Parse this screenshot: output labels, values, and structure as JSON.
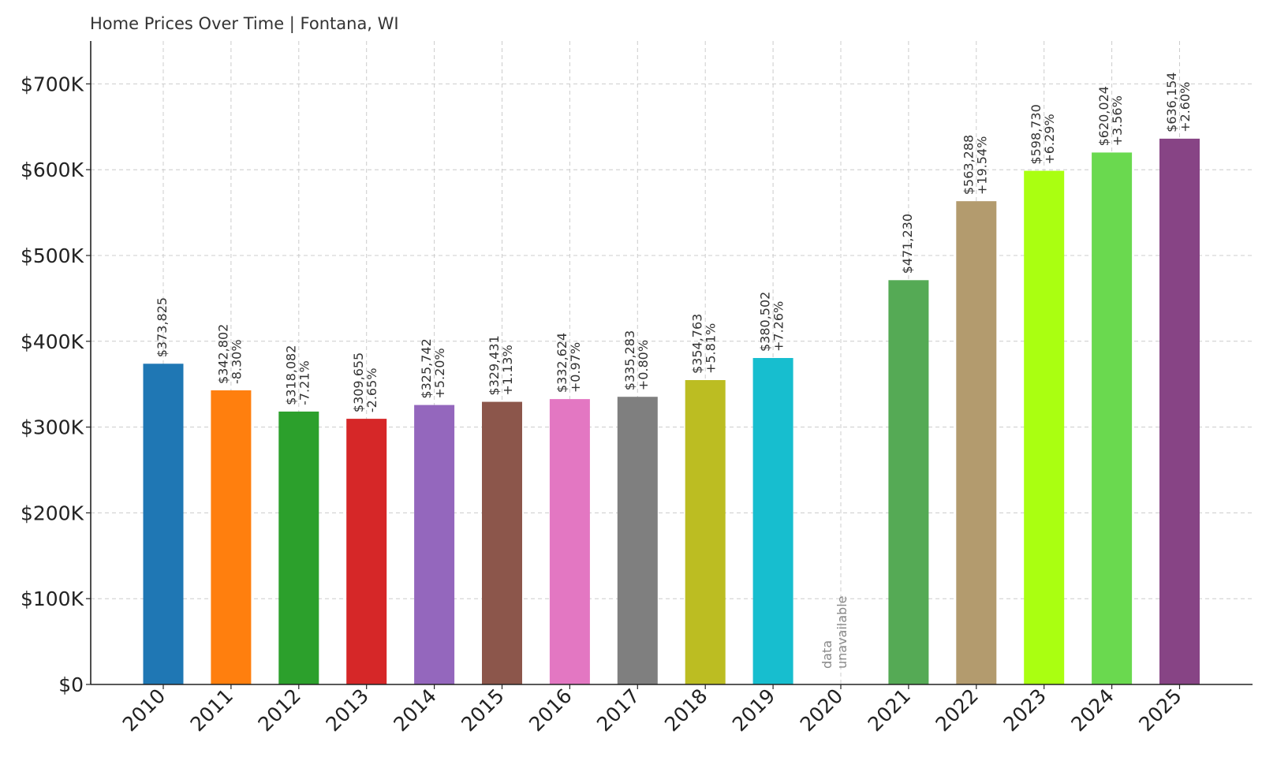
{
  "chart_data": {
    "type": "bar",
    "title": "Home Prices Over Time | Fontana, WI",
    "xlabel": "",
    "ylabel": "",
    "categories": [
      "2010",
      "2011",
      "2012",
      "2013",
      "2014",
      "2015",
      "2016",
      "2017",
      "2018",
      "2019",
      "2020",
      "2021",
      "2022",
      "2023",
      "2024",
      "2025"
    ],
    "values": [
      373825,
      342802,
      318082,
      309655,
      325742,
      329431,
      332624,
      335283,
      354763,
      380502,
      null,
      471230,
      563288,
      598730,
      620024,
      636154
    ],
    "value_labels": [
      "$373,825",
      "$342,802",
      "$318,082",
      "$309,655",
      "$325,742",
      "$329,431",
      "$332,624",
      "$335,283",
      "$354,763",
      "$380,502",
      "",
      "$471,230",
      "$563,288",
      "$598,730",
      "$620,024",
      "$636,154"
    ],
    "change_labels": [
      "",
      "-8.30%",
      "-7.21%",
      "-2.65%",
      "+5.20%",
      "+1.13%",
      "+0.97%",
      "+0.80%",
      "+5.81%",
      "+7.26%",
      "",
      "",
      "+19.54%",
      "+6.29%",
      "+3.56%",
      "+2.60%"
    ],
    "missing_label": [
      "data",
      "unavailable"
    ],
    "colors": [
      "#1f77b4",
      "#ff7f0e",
      "#2ca02c",
      "#d62728",
      "#9467bd",
      "#8c564b",
      "#e377c2",
      "#7f7f7f",
      "#bcbd22",
      "#17becf",
      "#cccccc",
      "#55aa55",
      "#b39b6e",
      "#aaff11",
      "#6ad94f",
      "#874485"
    ],
    "ylim": [
      0,
      750000
    ],
    "yticks": [
      0,
      100000,
      200000,
      300000,
      400000,
      500000,
      600000,
      700000
    ],
    "ytick_labels": [
      "$0",
      "$100K",
      "$200K",
      "$300K",
      "$400K",
      "$500K",
      "$600K",
      "$700K"
    ],
    "grid": true
  }
}
